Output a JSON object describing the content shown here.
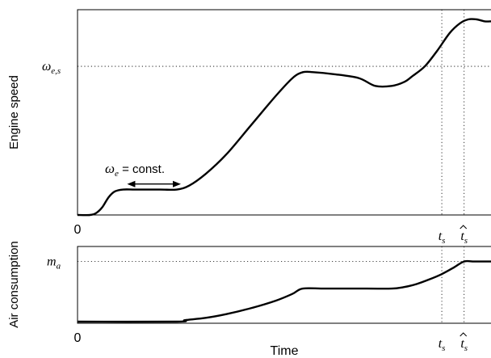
{
  "chart_data": [
    {
      "type": "line",
      "ylabel": "Engine speed",
      "ytick_label": "ω",
      "ytick_sub": "e,s",
      "ytick_value": 0.76,
      "x_origin_label": "0",
      "xlim": [
        0,
        1
      ],
      "ylim": [
        0,
        1
      ],
      "markers": [
        {
          "label": "t",
          "sub": "s",
          "hat": false,
          "x": 0.881
        },
        {
          "label": "t",
          "sub": "s",
          "hat": true,
          "x": 0.935
        }
      ],
      "annotation": {
        "symbol": "ω",
        "sub": "e",
        "text": " = const.",
        "x_start": 0.12,
        "x_end": 0.25,
        "y": 0.15
      },
      "series": [
        {
          "x": [
            0.0,
            0.03,
            0.045,
            0.06,
            0.075,
            0.09,
            0.11,
            0.14,
            0.2,
            0.24,
            0.27,
            0.31,
            0.36,
            0.42,
            0.48,
            0.52,
            0.545,
            0.57,
            0.62,
            0.68,
            0.72,
            0.76,
            0.79,
            0.81,
            0.84,
            0.87,
            0.9,
            0.925,
            0.945,
            0.965,
            0.985,
            1.0
          ],
          "y": [
            0.0,
            0.0,
            0.01,
            0.04,
            0.09,
            0.12,
            0.13,
            0.13,
            0.13,
            0.13,
            0.15,
            0.21,
            0.31,
            0.46,
            0.61,
            0.7,
            0.73,
            0.73,
            0.72,
            0.7,
            0.66,
            0.66,
            0.68,
            0.71,
            0.76,
            0.84,
            0.93,
            0.98,
            1.0,
            1.0,
            0.99,
            0.99
          ]
        }
      ]
    },
    {
      "type": "line",
      "ylabel": "Air consumption",
      "ytick_label": "m",
      "ytick_sub": "a",
      "ytick_value": 0.8,
      "x_origin_label": "0",
      "xlabel": "Time",
      "xlim": [
        0,
        1
      ],
      "ylim": [
        0,
        1
      ],
      "markers": [
        {
          "label": "t",
          "sub": "s",
          "hat": false,
          "x": 0.881
        },
        {
          "label": "t",
          "sub": "s",
          "hat": true,
          "x": 0.935
        }
      ],
      "series": [
        {
          "x": [
            0.0,
            0.24,
            0.26,
            0.31,
            0.36,
            0.42,
            0.48,
            0.52,
            0.545,
            0.6,
            0.7,
            0.76,
            0.79,
            0.82,
            0.85,
            0.88,
            0.91,
            0.935,
            0.96,
            1.0
          ],
          "y": [
            0.0,
            0.0,
            0.02,
            0.05,
            0.1,
            0.18,
            0.28,
            0.37,
            0.44,
            0.44,
            0.44,
            0.44,
            0.46,
            0.5,
            0.56,
            0.63,
            0.72,
            0.8,
            0.8,
            0.8
          ]
        }
      ]
    }
  ]
}
